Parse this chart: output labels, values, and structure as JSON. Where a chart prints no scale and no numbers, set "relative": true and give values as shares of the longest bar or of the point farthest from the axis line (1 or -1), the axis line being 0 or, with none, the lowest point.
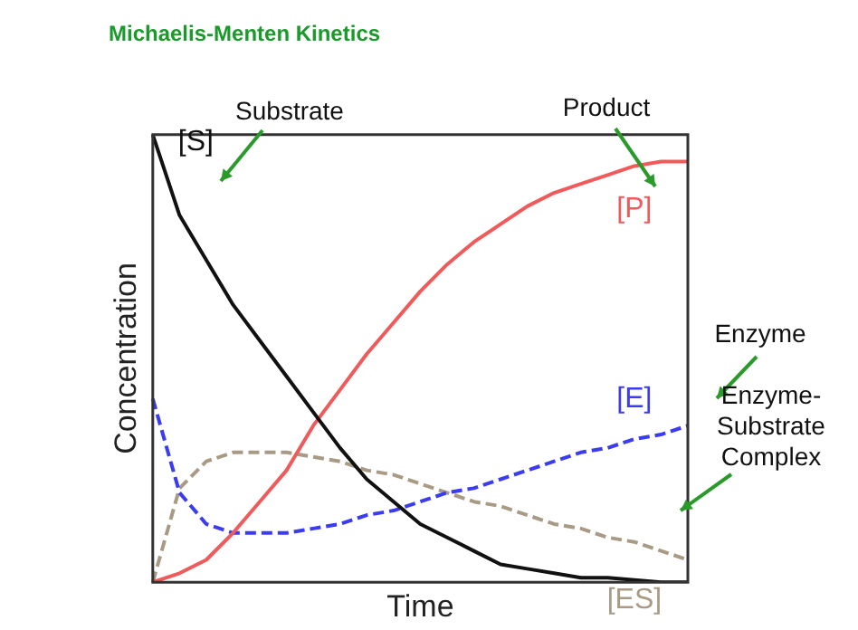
{
  "chart_data": {
    "type": "line",
    "title": "Michaelis-Menten Kinetics",
    "xlabel": "Time",
    "ylabel": "Concentration",
    "relative": true,
    "legend": false,
    "grid": false,
    "marker": "none",
    "categories": [
      null,
      null,
      null,
      null,
      null,
      null,
      null,
      null,
      null,
      null,
      null,
      null,
      null,
      null,
      null,
      null,
      null,
      null,
      null,
      null,
      null
    ],
    "series": [
      {
        "name": "[S]",
        "color": "#111111",
        "line_style": "solid",
        "values": [
          1,
          0.82,
          0.72,
          0.62,
          0.54,
          0.46,
          0.38,
          0.3,
          0.23,
          0.18,
          0.13,
          0.1,
          0.07,
          0.04,
          0.03,
          0.02,
          0.01,
          0.01,
          0.005,
          0,
          0
        ]
      },
      {
        "name": "[P]",
        "color": "#f05a5a",
        "line_style": "solid",
        "values": [
          0,
          0.02,
          0.05,
          0.11,
          0.18,
          0.25,
          0.35,
          0.43,
          0.51,
          0.58,
          0.65,
          0.71,
          0.76,
          0.8,
          0.84,
          0.87,
          0.89,
          0.91,
          0.93,
          0.94,
          0.94
        ]
      },
      {
        "name": "[E]",
        "color": "#3b3bf0",
        "line_style": "dashed",
        "values": [
          0.41,
          0.2,
          0.13,
          0.11,
          0.11,
          0.11,
          0.12,
          0.13,
          0.15,
          0.16,
          0.18,
          0.2,
          0.21,
          0.23,
          0.25,
          0.27,
          0.29,
          0.3,
          0.32,
          0.33,
          0.35
        ]
      },
      {
        "name": "[ES]",
        "color": "#a89a84",
        "line_style": "dashed",
        "values": [
          0,
          0.21,
          0.27,
          0.29,
          0.29,
          0.29,
          0.28,
          0.27,
          0.25,
          0.24,
          0.22,
          0.2,
          0.18,
          0.17,
          0.15,
          0.13,
          0.12,
          0.1,
          0.09,
          0.07,
          0.05
        ]
      }
    ],
    "annotations": [
      "Substrate",
      "Product",
      "Enzyme",
      "Enzyme-Substrate Complex"
    ]
  }
}
